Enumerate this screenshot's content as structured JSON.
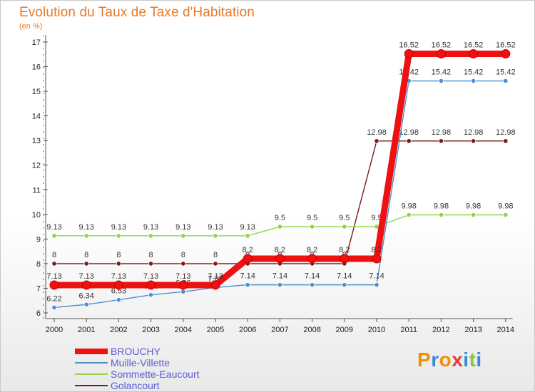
{
  "header": {
    "title": "Evolution du Taux de Taxe d'Habitation",
    "unit": "(en %)"
  },
  "logo": {
    "text": "Proxiti",
    "colors": [
      "#f29100",
      "#3b8ad6",
      "#f29100",
      "#e23c3c",
      "#3b8ad6",
      "#8cc63f",
      "#3b8ad6"
    ]
  },
  "chart_data": {
    "type": "line",
    "title": "Evolution du Taux de Taxe d'Habitation",
    "xlabel": "",
    "ylabel": "(en %)",
    "ylim": [
      6,
      17
    ],
    "y_ticks": [
      6,
      7,
      8,
      9,
      10,
      11,
      12,
      13,
      14,
      15,
      16,
      17
    ],
    "x": [
      "2000",
      "2001",
      "2002",
      "2003",
      "2004",
      "2005",
      "2006",
      "2007",
      "2008",
      "2009",
      "2010",
      "2011",
      "2012",
      "2013",
      "2014"
    ],
    "grid": false,
    "legend_position": "bottom-left",
    "series": [
      {
        "name": "Golancourt",
        "color": "#7a1a1a",
        "values": [
          8,
          8,
          8,
          8,
          8,
          8,
          8,
          8,
          8,
          8,
          12.98,
          12.98,
          12.98,
          12.98,
          12.98
        ],
        "labels": [
          "8",
          "8",
          "8",
          "8",
          "8",
          "8",
          "8",
          "8",
          "8",
          "8",
          "12.98",
          "12.98",
          "12.98",
          "12.98",
          "12.98"
        ]
      },
      {
        "name": "Sommette-Eaucourt",
        "color": "#8fd44a",
        "values": [
          9.13,
          9.13,
          9.13,
          9.13,
          9.13,
          9.13,
          9.13,
          9.5,
          9.5,
          9.5,
          9.5,
          9.98,
          9.98,
          9.98,
          9.98
        ],
        "labels": [
          "9.13",
          "9.13",
          "9.13",
          "9.13",
          "9.13",
          "9.13",
          "9.13",
          "9.5",
          "9.5",
          "9.5",
          "9.5",
          "9.98",
          "9.98",
          "9.98",
          "9.98"
        ]
      },
      {
        "name": "Muille-Villette",
        "color": "#4a8fce",
        "values": [
          6.22,
          6.34,
          6.53,
          6.73,
          6.86,
          7.03,
          7.14,
          7.14,
          7.14,
          7.14,
          7.14,
          15.42,
          15.42,
          15.42,
          15.42
        ],
        "labels": [
          "6.22",
          "6.34",
          "6.53",
          "6.73",
          "6.86",
          "7.03",
          "7.14",
          "7.14",
          "7.14",
          "7.14",
          "7.14",
          "15.42",
          "15.42",
          "15.42",
          "15.42"
        ]
      },
      {
        "name": "BROUCHY",
        "color": "#ee1111",
        "values": [
          7.13,
          7.13,
          7.13,
          7.13,
          7.13,
          7.13,
          8.2,
          8.2,
          8.2,
          8.2,
          8.2,
          16.52,
          16.52,
          16.52,
          16.52
        ],
        "labels": [
          "7.13",
          "7.13",
          "7.13",
          "7.13",
          "7.13",
          "7.13",
          "8.2",
          "8.2",
          "8.2",
          "8.2",
          "8.2",
          "16.52",
          "16.52",
          "16.52",
          "16.52"
        ]
      }
    ]
  },
  "legend": {
    "items": [
      {
        "label": "BROUCHY",
        "color": "#ee1111",
        "thickness": 8
      },
      {
        "label": "Muille-Villette",
        "color": "#4a8fce",
        "thickness": 2
      },
      {
        "label": "Sommette-Eaucourt",
        "color": "#8fd44a",
        "thickness": 2
      },
      {
        "label": "Golancourt",
        "color": "#7a1a1a",
        "thickness": 2
      }
    ]
  }
}
